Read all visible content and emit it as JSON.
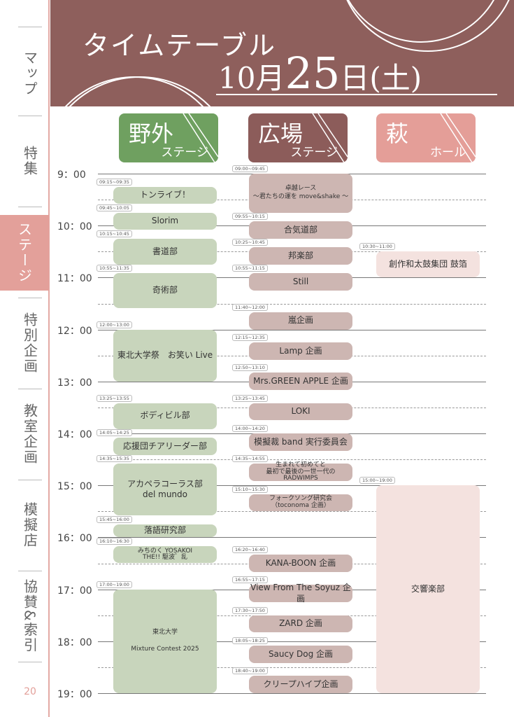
{
  "sidebar": {
    "items": [
      {
        "label": "マップ",
        "active": false
      },
      {
        "label": "特集",
        "active": false
      },
      {
        "label": "ステージ",
        "active": true
      },
      {
        "label": "特別企画",
        "active": false
      },
      {
        "label": "教室企画",
        "active": false
      },
      {
        "label": "模擬店",
        "active": false
      },
      {
        "label": "協賛&索引",
        "active": false
      }
    ],
    "page_number": "20"
  },
  "header": {
    "title": "タイムテーブル",
    "date_month": "10月",
    "date_day": "25",
    "date_suffix": "日(土)"
  },
  "stages": [
    {
      "id": "outdoor",
      "name": "野外",
      "sub": "ステージ",
      "color": "#6fa060"
    },
    {
      "id": "plaza",
      "name": "広場",
      "sub": "ステージ",
      "color": "#8c5c5a"
    },
    {
      "id": "hall",
      "name": "萩",
      "sub": "ホール",
      "color": "#e49e98"
    }
  ],
  "hours": [
    "9：00",
    "10：00",
    "11：00",
    "12：00",
    "13：00",
    "14：00",
    "15：00",
    "16：00",
    "17：00",
    "18：00",
    "19：00"
  ],
  "events": [
    {
      "stage": "outdoor",
      "time": "09:15~09:35",
      "label": "トンライブ！"
    },
    {
      "stage": "outdoor",
      "time": "09:45~10:05",
      "label": "Slorim"
    },
    {
      "stage": "outdoor",
      "time": "10:15~10:45",
      "label": "書道部"
    },
    {
      "stage": "outdoor",
      "time": "10:55~11:35",
      "label": "奇術部"
    },
    {
      "stage": "outdoor",
      "time": "12:00~13:00",
      "label": "東北大学祭　お笑い Live"
    },
    {
      "stage": "outdoor",
      "time": "13:25~13:55",
      "label": "ボディビル部"
    },
    {
      "stage": "outdoor",
      "time": "14:05~14:25",
      "label": "応援団チアリーダー部"
    },
    {
      "stage": "outdoor",
      "time": "14:35~15:35",
      "label": "アカペラコーラス部\ndel mundo"
    },
    {
      "stage": "outdoor",
      "time": "15:45~16:00",
      "label": "落語研究部"
    },
    {
      "stage": "outdoor",
      "time": "16:10~16:30",
      "label": "みちのく YOSAKOI\nTHE!! 駆波゛乱"
    },
    {
      "stage": "outdoor",
      "time": "17:00~19:00",
      "label": "東北大学\n\nMixture Contest 2025"
    },
    {
      "stage": "plaza",
      "time": "09:00~09:45",
      "label": "卓越レース\n～君たちの運を move&shake ～"
    },
    {
      "stage": "plaza",
      "time": "09:55~10:15",
      "label": "合気道部"
    },
    {
      "stage": "plaza",
      "time": "10:25~10:45",
      "label": "邦楽部"
    },
    {
      "stage": "plaza",
      "time": "10:55~11:15",
      "label": "Still"
    },
    {
      "stage": "plaza",
      "time": "11:40~12:00",
      "label": "嵐企画"
    },
    {
      "stage": "plaza",
      "time": "12:15~12:35",
      "label": "Lamp 企画"
    },
    {
      "stage": "plaza",
      "time": "12:50~13:10",
      "label": "Mrs.GREEN APPLE 企画"
    },
    {
      "stage": "plaza",
      "time": "13:25~13:45",
      "label": "LOKI"
    },
    {
      "stage": "plaza",
      "time": "14:00~14:20",
      "label": "模擬裁 band 実行委員会"
    },
    {
      "stage": "plaza",
      "time": "14:35~14:55",
      "label": "生まれて初めてと\n最初で最後の一世一代の RADWIMPS"
    },
    {
      "stage": "plaza",
      "time": "15:10~15:30",
      "label": "フォークソング研究会\n（toconoma 企画）"
    },
    {
      "stage": "plaza",
      "time": "16:20~16:40",
      "label": "KANA-BOON 企画"
    },
    {
      "stage": "plaza",
      "time": "16:55~17:15",
      "label": "View From The Soyuz 企画"
    },
    {
      "stage": "plaza",
      "time": "17:30~17:50",
      "label": "ZARD 企画"
    },
    {
      "stage": "plaza",
      "time": "18:05~18:25",
      "label": "Saucy Dog 企画"
    },
    {
      "stage": "plaza",
      "time": "18:40~19:00",
      "label": "クリープハイプ企画"
    },
    {
      "stage": "hall",
      "time": "10:30~11:00",
      "label": "創作和太鼓集団 鼓箔"
    },
    {
      "stage": "hall",
      "time": "15:00~19:00",
      "label": "交響楽部"
    }
  ]
}
